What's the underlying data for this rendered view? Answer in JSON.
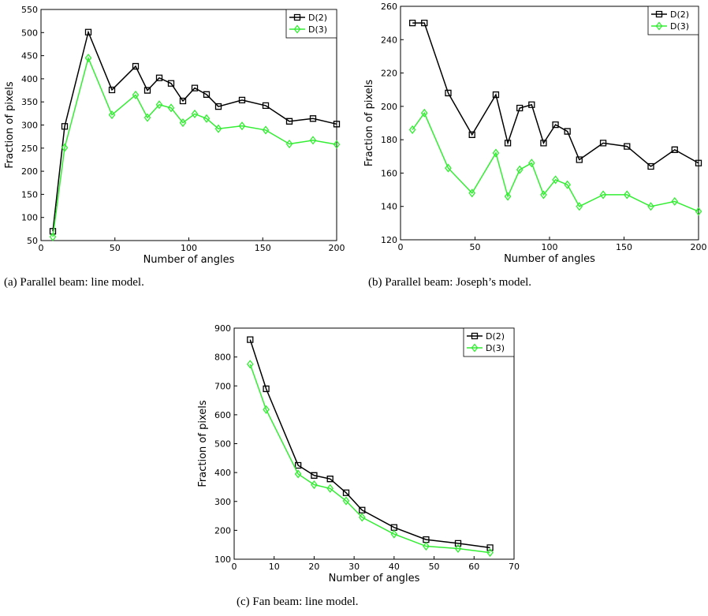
{
  "chart_data": [
    {
      "type": "line",
      "xlabel": "Number of angles",
      "ylabel": "Fraction of pixels",
      "caption": "(a) Parallel beam: line model.",
      "x": [
        8,
        16,
        32,
        48,
        64,
        72,
        80,
        88,
        96,
        104,
        112,
        120,
        136,
        152,
        168,
        184,
        200
      ],
      "series": [
        {
          "name": "D(2)",
          "color": "#000000",
          "marker": "square",
          "values": [
            70,
            297,
            501,
            376,
            427,
            375,
            402,
            390,
            352,
            380,
            366,
            340,
            354,
            342,
            308,
            314,
            302
          ]
        },
        {
          "name": "D(3)",
          "color": "#33ee33",
          "marker": "diamond",
          "values": [
            58,
            251,
            445,
            322,
            365,
            316,
            344,
            337,
            305,
            324,
            314,
            292,
            298,
            289,
            259,
            267,
            258
          ]
        }
      ],
      "xlim": [
        0,
        200
      ],
      "xticks": [
        0,
        50,
        100,
        150,
        200
      ],
      "ylim": [
        50,
        550
      ],
      "yticks": [
        50,
        100,
        150,
        200,
        250,
        300,
        350,
        400,
        450,
        500,
        550
      ],
      "legend": "upper right"
    },
    {
      "type": "line",
      "xlabel": "Number of angles",
      "ylabel": "Fraction of pixels",
      "caption": "(b) Parallel beam: Joseph’s model.",
      "x": [
        8,
        16,
        32,
        48,
        64,
        72,
        80,
        88,
        96,
        104,
        112,
        120,
        136,
        152,
        168,
        184,
        200
      ],
      "series": [
        {
          "name": "D(2)",
          "color": "#000000",
          "marker": "square",
          "values": [
            250,
            250,
            208,
            183,
            207,
            178,
            199,
            201,
            178,
            189,
            185,
            168,
            178,
            176,
            164,
            174,
            166
          ]
        },
        {
          "name": "D(3)",
          "color": "#33ee33",
          "marker": "diamond",
          "values": [
            186,
            196,
            163,
            148,
            172,
            146,
            162,
            166,
            147,
            156,
            153,
            140,
            147,
            147,
            140,
            143,
            137
          ]
        }
      ],
      "xlim": [
        0,
        200
      ],
      "xticks": [
        0,
        50,
        100,
        150,
        200
      ],
      "ylim": [
        120,
        260
      ],
      "yticks": [
        120,
        140,
        160,
        180,
        200,
        220,
        240,
        260
      ],
      "legend": "upper right"
    },
    {
      "type": "line",
      "xlabel": "Number of angles",
      "ylabel": "Fraction of pixels",
      "caption": "(c) Fan beam: line model.",
      "x": [
        4,
        8,
        16,
        20,
        24,
        28,
        32,
        40,
        48,
        56,
        64
      ],
      "series": [
        {
          "name": "D(2)",
          "color": "#000000",
          "marker": "square",
          "values": [
            860,
            690,
            425,
            390,
            378,
            330,
            270,
            210,
            168,
            155,
            140
          ]
        },
        {
          "name": "D(3)",
          "color": "#33ee33",
          "marker": "diamond",
          "values": [
            775,
            618,
            395,
            358,
            345,
            302,
            245,
            187,
            145,
            137,
            123
          ]
        }
      ],
      "xlim": [
        0,
        70
      ],
      "xticks": [
        0,
        10,
        20,
        30,
        40,
        50,
        60,
        70
      ],
      "ylim": [
        100,
        900
      ],
      "yticks": [
        100,
        200,
        300,
        400,
        500,
        600,
        700,
        800,
        900
      ],
      "legend": "upper right"
    }
  ]
}
